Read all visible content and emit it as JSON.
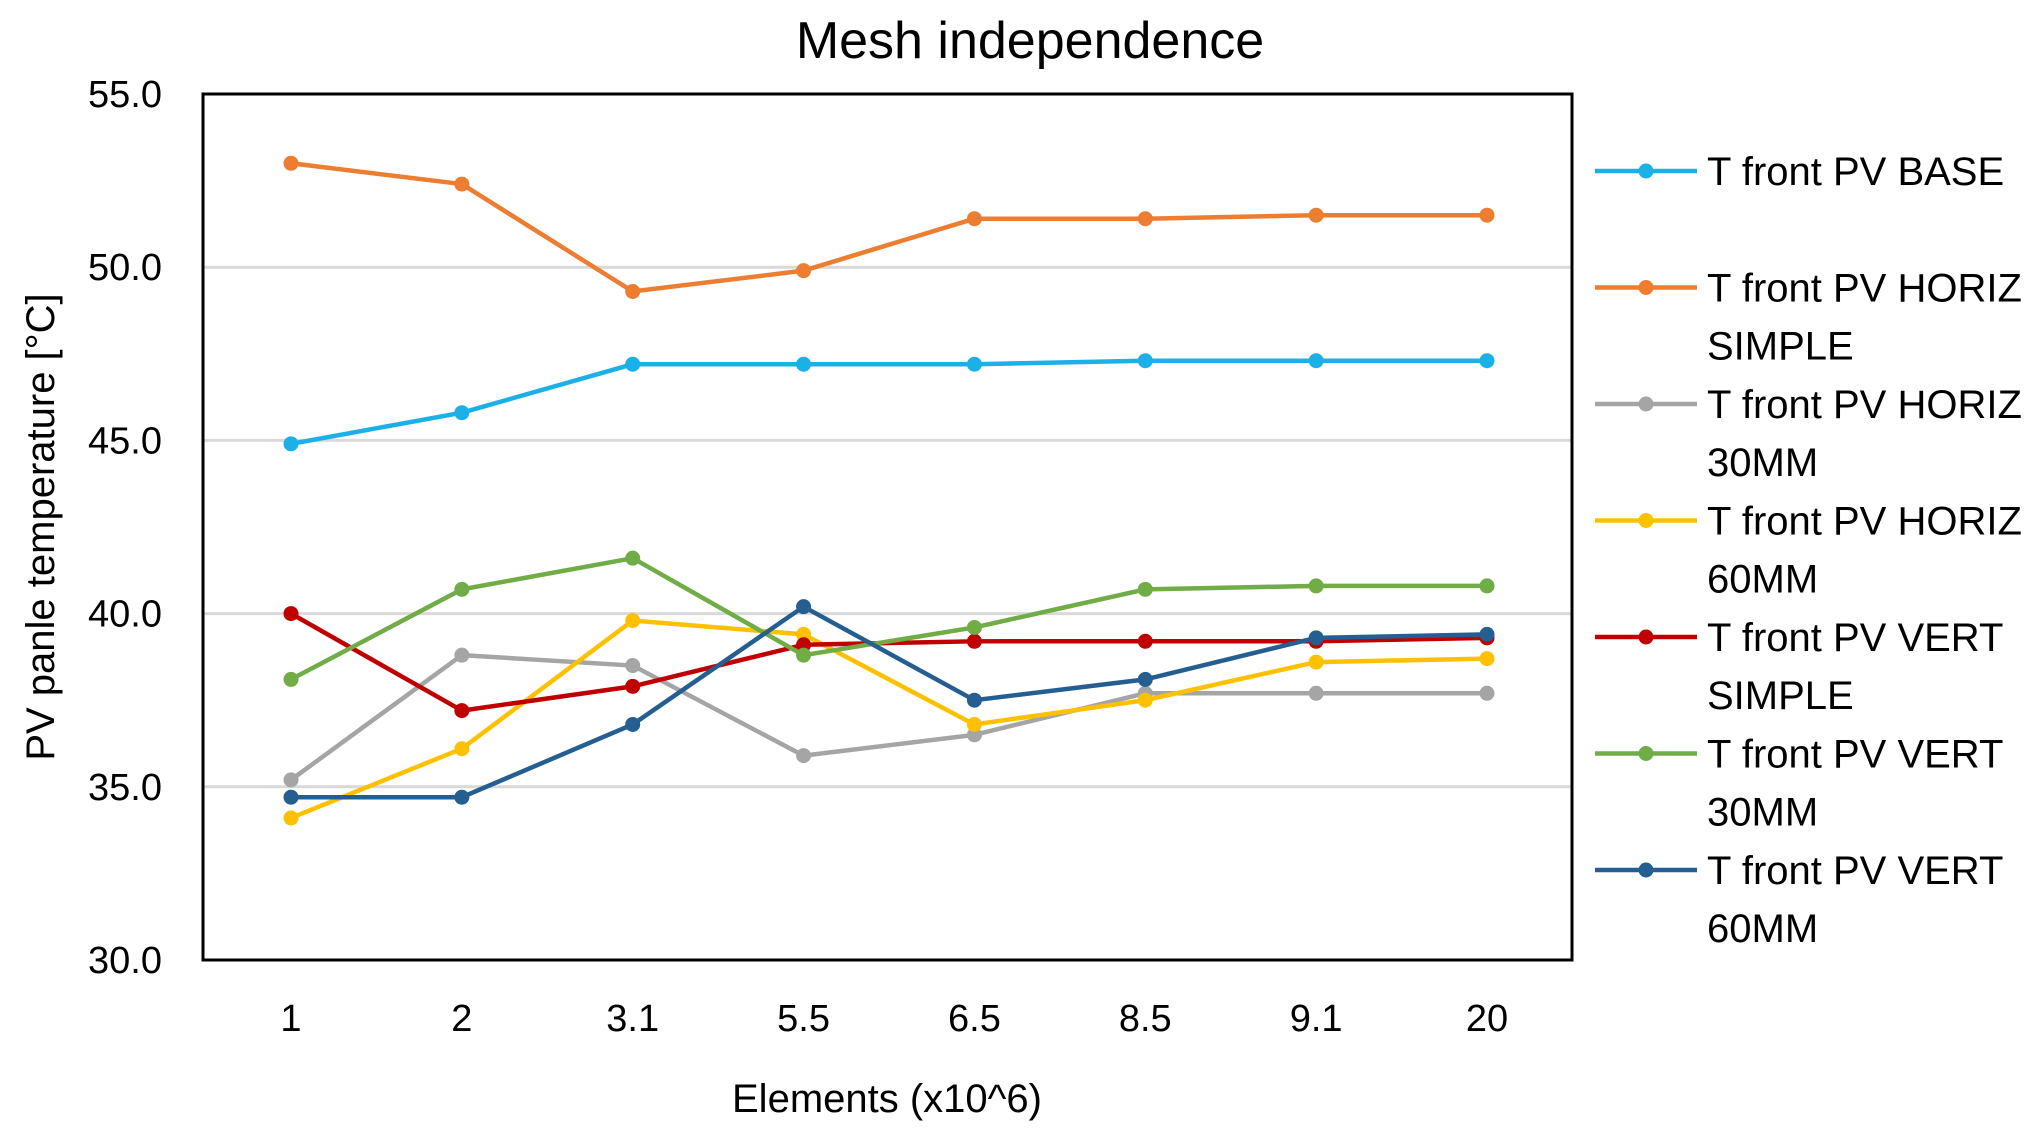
{
  "chart_data": {
    "type": "line",
    "title": "Mesh independence",
    "xlabel": "Elements  (x10^6)",
    "ylabel": "PV panle temperature  [°C]",
    "categories": [
      "1",
      "2",
      "3.1",
      "5.5",
      "6.5",
      "8.5",
      "9.1",
      "20"
    ],
    "ylim": [
      30.0,
      55.0
    ],
    "yticks": [
      "30.0",
      "35.0",
      "40.0",
      "45.0",
      "50.0",
      "55.0"
    ],
    "grid": true,
    "legend_position": "right",
    "series": [
      {
        "name": "T front PV BASE",
        "legend_lines": [
          "T front PV BASE"
        ],
        "color": "#1cb0e8",
        "values": [
          44.9,
          45.8,
          47.2,
          47.2,
          47.2,
          47.3,
          47.3,
          47.3
        ]
      },
      {
        "name": "T front PV HORIZ SIMPLE",
        "legend_lines": [
          "T front PV HORIZ",
          "SIMPLE"
        ],
        "color": "#ed7d31",
        "values": [
          53.0,
          52.4,
          49.3,
          49.9,
          51.4,
          51.4,
          51.5,
          51.5
        ]
      },
      {
        "name": "T front PV HORIZ 30MM",
        "legend_lines": [
          "T front PV HORIZ",
          "30MM"
        ],
        "color": "#a5a5a5",
        "values": [
          35.2,
          38.8,
          38.5,
          35.9,
          36.5,
          37.7,
          37.7,
          37.7
        ]
      },
      {
        "name": "T front PV HORIZ 60MM",
        "legend_lines": [
          "T front PV HORIZ",
          "60MM"
        ],
        "color": "#ffc000",
        "values": [
          34.1,
          36.1,
          39.8,
          39.4,
          36.8,
          37.5,
          38.6,
          38.7
        ]
      },
      {
        "name": "T front PV VERT SIMPLE",
        "legend_lines": [
          "T front PV VERT",
          "SIMPLE"
        ],
        "color": "#c00000",
        "values": [
          40.0,
          37.2,
          37.9,
          39.1,
          39.2,
          39.2,
          39.2,
          39.3
        ]
      },
      {
        "name": "T front PV VERT 30MM",
        "legend_lines": [
          "T front PV VERT",
          "30MM"
        ],
        "color": "#70ad47",
        "values": [
          38.1,
          40.7,
          41.6,
          38.8,
          39.6,
          40.7,
          40.8,
          40.8
        ]
      },
      {
        "name": "T front PV VERT 60MM",
        "legend_lines": [
          "T front PV VERT",
          "60MM"
        ],
        "color": "#255e91",
        "values": [
          34.7,
          34.7,
          36.8,
          40.2,
          37.5,
          38.1,
          39.3,
          39.4
        ]
      }
    ]
  }
}
